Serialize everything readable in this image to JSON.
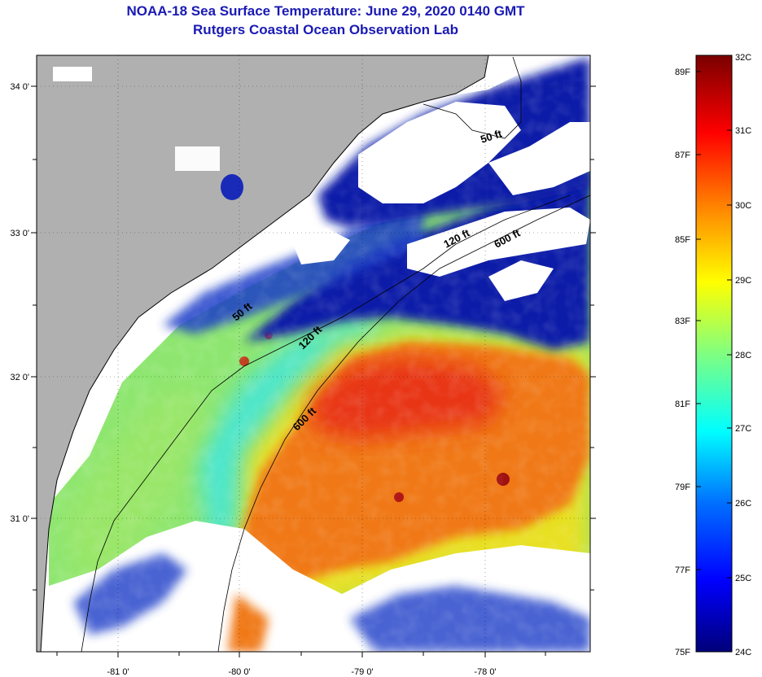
{
  "title": "NOAA-18 Sea Surface Temperature:  June 29, 2020 0140 GMT",
  "subtitle": "Rutgers Coastal Ocean Observation Lab",
  "map": {
    "lon_labels": [
      "-81 0'",
      "-80 0'",
      "-79 0'",
      "-78 0'"
    ],
    "lat_labels": [
      "34 0'",
      "33 0'",
      "32 0'",
      "31 0'"
    ],
    "contour_labels": [
      "50 ft",
      "120 ft",
      "600 ft",
      "120 ft",
      "600 ft",
      "50 ft"
    ],
    "colors": {
      "land": "#b0b0b0",
      "cloud": "#ffffff",
      "cold": "#0a0aa0",
      "warm": "#f06414"
    }
  },
  "colorbar": {
    "f_labels": [
      "89F",
      "87F",
      "85F",
      "83F",
      "81F",
      "79F",
      "77F",
      "75F"
    ],
    "c_labels": [
      "32C",
      "31C",
      "30C",
      "29C",
      "28C",
      "27C",
      "26C",
      "25C",
      "24C"
    ],
    "colors": [
      "#000080",
      "#0000ff",
      "#0080ff",
      "#00ffff",
      "#80ff80",
      "#ffff00",
      "#ff8000",
      "#ff0000",
      "#800000"
    ]
  }
}
